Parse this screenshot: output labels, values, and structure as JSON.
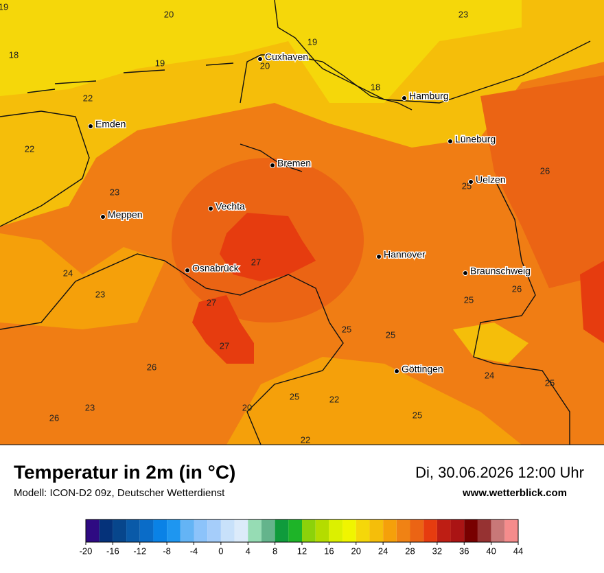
{
  "map": {
    "temperature_labels": [
      19,
      20,
      23,
      18,
      19,
      19,
      20,
      18,
      22,
      22,
      26,
      25,
      23,
      27,
      24,
      23,
      26,
      25,
      27,
      25,
      25,
      27,
      26,
      24,
      25,
      25,
      22,
      20,
      23,
      26,
      25,
      22
    ],
    "cities": [
      "Cuxhaven",
      "Hamburg",
      "Emden",
      "Lüneburg",
      "Bremen",
      "Uelzen",
      "Vechta",
      "Meppen",
      "Hannover",
      "Osnabrück",
      "Braunschweig",
      "Göttingen"
    ]
  },
  "footer": {
    "title": "Temperatur in 2m (in °C)",
    "subtitle": "Modell: ICON-D2 09z, Deutscher Wetterdienst",
    "date": "Di, 30.06.2026 12:00 Uhr",
    "website": "www.wetterblick.com"
  },
  "colorbar": {
    "colors": [
      "#2e0a82",
      "#05327a",
      "#07468c",
      "#0a5aa8",
      "#0a6cc8",
      "#0a82e6",
      "#1e96f0",
      "#64b4f5",
      "#8cc3fa",
      "#a5cdfa",
      "#c8e1fa",
      "#dcebfa",
      "#96dcb4",
      "#64b48c",
      "#0f9b3c",
      "#1eb428",
      "#8cd20a",
      "#b4dc00",
      "#dcf000",
      "#f0f500",
      "#f5d70a",
      "#f5be0a",
      "#f5a00a",
      "#f08214",
      "#eb6414",
      "#e63c0f",
      "#be1e14",
      "#aa1414",
      "#780000",
      "#963232",
      "#c87878",
      "#f58c8c"
    ],
    "ticks": [
      -20,
      -16,
      -12,
      -8,
      -4,
      0,
      4,
      8,
      12,
      16,
      20,
      24,
      28,
      32,
      36,
      40,
      44
    ]
  }
}
